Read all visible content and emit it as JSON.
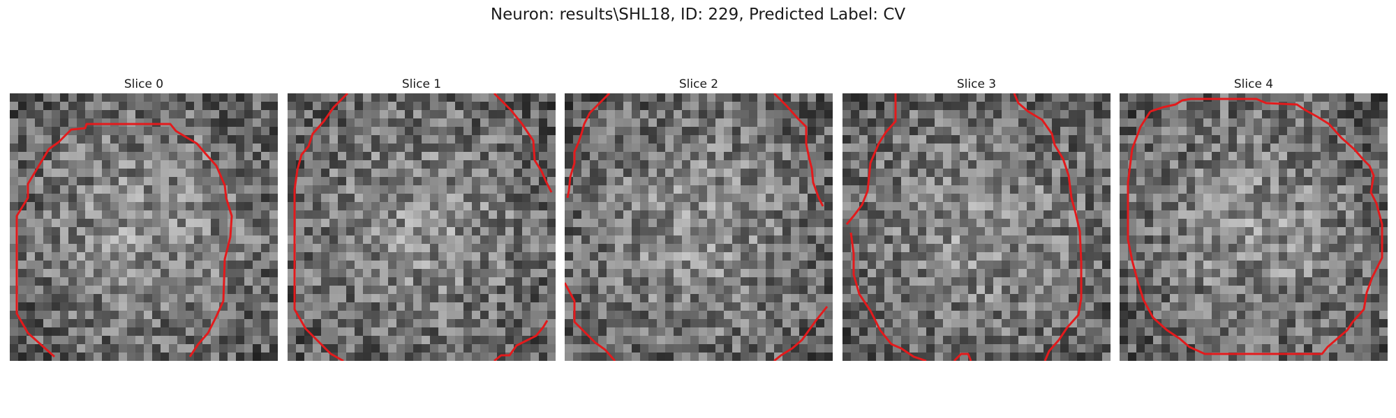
{
  "figure": {
    "suptitle": "Neuron: results\\SHL18, ID: 229, Predicted Label: CV"
  },
  "slices": [
    {
      "title": "Slice 0",
      "seed": 11,
      "contour_color": "#e31a1c"
    },
    {
      "title": "Slice 1",
      "seed": 23,
      "contour_color": "#e31a1c"
    },
    {
      "title": "Slice 2",
      "seed": 37,
      "contour_color": "#e31a1c"
    },
    {
      "title": "Slice 3",
      "seed": 53,
      "contour_color": "#e31a1c"
    },
    {
      "title": "Slice 4",
      "seed": 71,
      "contour_color": "#e31a1c"
    }
  ],
  "image": {
    "grid": 32,
    "colormap": "gray"
  }
}
